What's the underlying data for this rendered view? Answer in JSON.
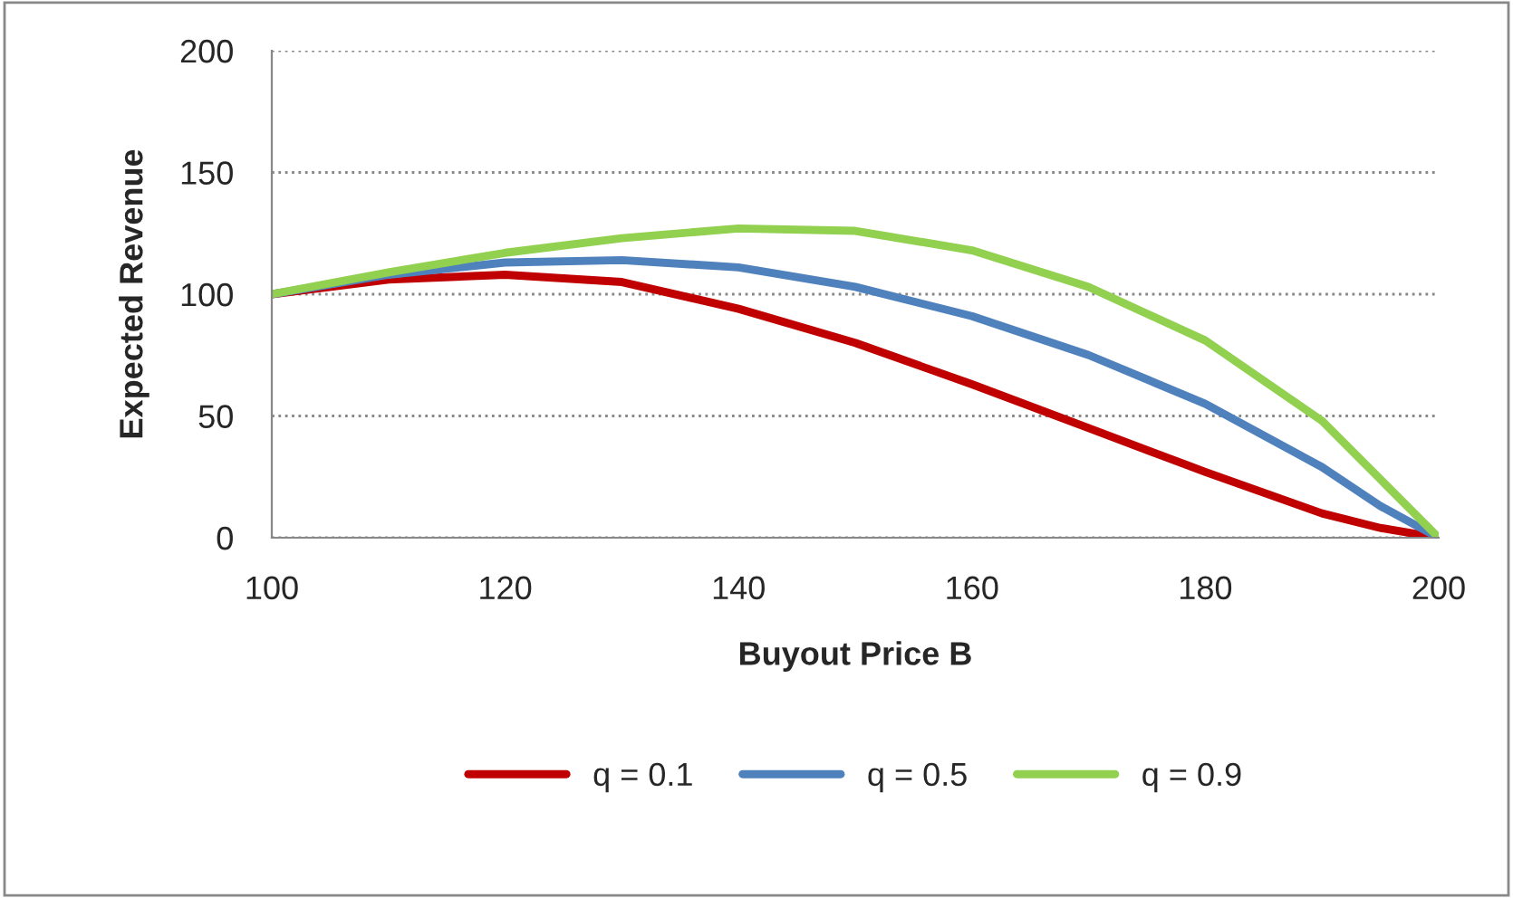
{
  "chart_data": {
    "type": "line",
    "xlabel": "Buyout Price B",
    "ylabel": "Expected Revenue",
    "x": [
      100,
      110,
      120,
      130,
      140,
      150,
      160,
      170,
      180,
      190,
      195,
      200
    ],
    "xlim": [
      100,
      200
    ],
    "xticks": [
      100,
      120,
      140,
      160,
      180,
      200
    ],
    "ylim": [
      0,
      200
    ],
    "yticks": [
      0,
      50,
      100,
      150,
      200
    ],
    "grid": "y",
    "legend": "bottom",
    "marker": "none",
    "line_style": "solid",
    "series": [
      {
        "name": "q = 0.1",
        "color": "#c00000",
        "values": [
          100,
          106,
          108,
          105,
          94,
          80,
          63,
          45,
          27,
          10,
          4,
          0
        ]
      },
      {
        "name": "q = 0.5",
        "color": "#4f81bd",
        "values": [
          100,
          108,
          113,
          114,
          111,
          103,
          91,
          75,
          55,
          29,
          13,
          0
        ]
      },
      {
        "name": "q = 0.9",
        "color": "#92d050",
        "values": [
          100,
          109,
          117,
          123,
          127,
          126,
          118,
          103,
          81,
          48,
          24,
          0
        ]
      }
    ]
  }
}
